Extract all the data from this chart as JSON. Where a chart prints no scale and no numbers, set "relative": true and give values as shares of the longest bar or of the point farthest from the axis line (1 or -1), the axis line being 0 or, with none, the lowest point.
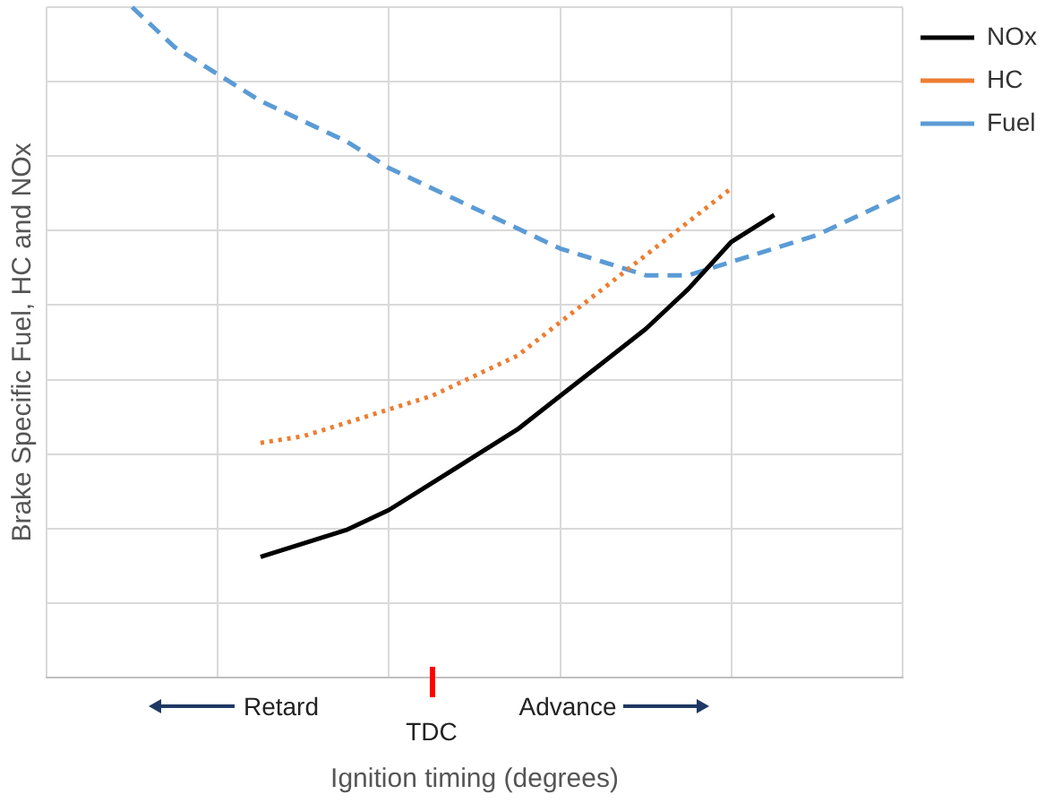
{
  "chart_data": {
    "type": "line",
    "relative": true,
    "xlabel": "Ignition timing (degrees)",
    "ylabel": "Brake Specific Fuel, HC and NOx",
    "annotations": [
      "Retard",
      "TDC",
      "Advance"
    ],
    "categories": [
      null,
      null,
      null,
      null,
      null,
      null,
      null,
      null,
      null,
      null,
      null,
      null,
      null,
      null,
      null,
      null,
      null,
      null,
      null,
      null,
      null
    ],
    "grid": true,
    "legend": "top right",
    "marker": "none",
    "series": [
      {
        "name": "NOx",
        "color": "#000000",
        "line_style": "solid",
        "values": [
          null,
          null,
          null,
          null,
          null,
          0.18,
          0.2,
          0.22,
          0.25,
          0.29,
          0.33,
          0.37,
          0.42,
          0.47,
          0.52,
          0.58,
          0.65,
          0.69,
          null,
          null,
          null
        ]
      },
      {
        "name": "HC",
        "color": "#ed7d31",
        "line_style": "dotted",
        "values": [
          null,
          null,
          null,
          null,
          null,
          0.35,
          0.36,
          0.38,
          0.4,
          0.42,
          0.45,
          0.48,
          0.53,
          0.58,
          0.63,
          0.68,
          0.73,
          null,
          null,
          null,
          null
        ]
      },
      {
        "name": "Fuel",
        "color": "#5b9bd5",
        "line_style": "dashed",
        "values": [
          null,
          null,
          1.0,
          0.94,
          0.9,
          0.86,
          0.83,
          0.8,
          0.76,
          0.73,
          0.7,
          0.67,
          0.64,
          0.62,
          0.6,
          0.6,
          0.62,
          0.64,
          0.66,
          0.69,
          0.72
        ]
      }
    ]
  }
}
